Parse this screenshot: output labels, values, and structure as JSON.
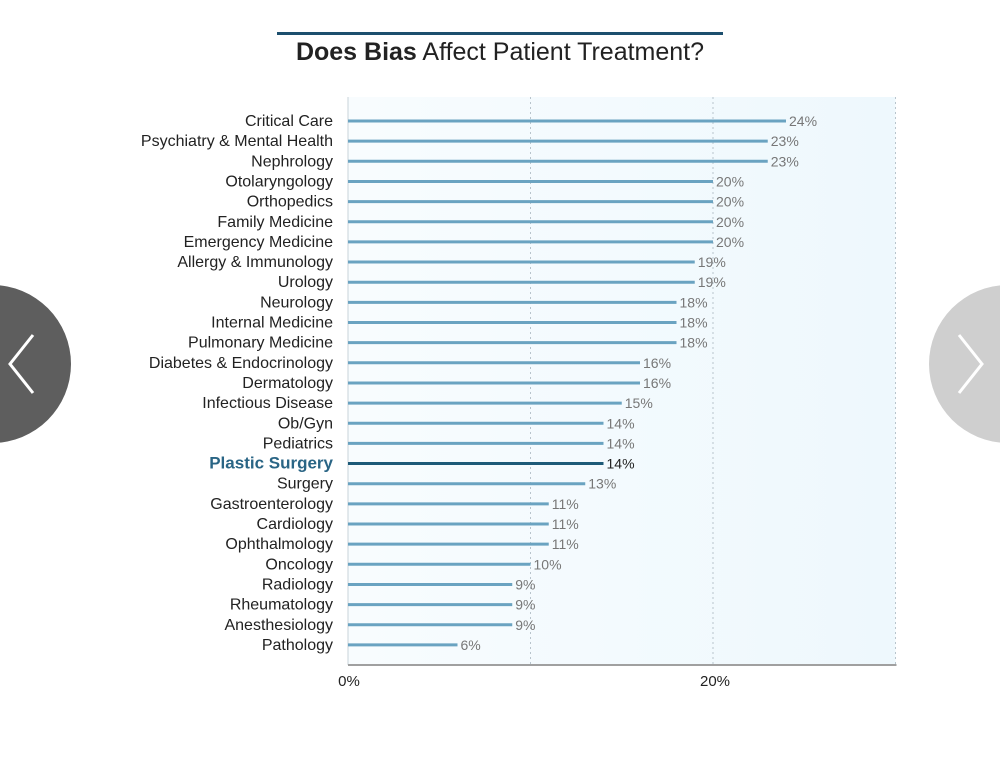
{
  "title": {
    "bold": "Does Bias",
    "rest": " Affect Patient Treatment?"
  },
  "nav": {
    "prev_icon": "chevron-left-icon",
    "next_icon": "chevron-right-icon"
  },
  "colors": {
    "bar": "#6aa3c1",
    "highlight_bar": "#1d5a78",
    "highlight_label": "#2a6585",
    "plot_bg": "#eef8fd",
    "value_label": "#777777"
  },
  "chart_data": {
    "type": "bar",
    "orientation": "horizontal",
    "title": "Does Bias Affect Patient Treatment?",
    "categories": [
      "Critical Care",
      "Psychiatry & Mental Health",
      "Nephrology",
      "Otolaryngology",
      "Orthopedics",
      "Family Medicine",
      "Emergency Medicine",
      "Allergy & Immunology",
      "Urology",
      "Neurology",
      "Internal Medicine",
      "Pulmonary Medicine",
      "Diabetes & Endocrinology",
      "Dermatology",
      "Infectious Disease",
      "Ob/Gyn",
      "Pediatrics",
      "Plastic Surgery",
      "Surgery",
      "Gastroenterology",
      "Cardiology",
      "Ophthalmology",
      "Oncology",
      "Radiology",
      "Rheumatology",
      "Anesthesiology",
      "Pathology"
    ],
    "values": [
      24,
      23,
      23,
      20,
      20,
      20,
      20,
      19,
      19,
      18,
      18,
      18,
      16,
      16,
      15,
      14,
      14,
      14,
      13,
      11,
      11,
      11,
      10,
      9,
      9,
      9,
      6
    ],
    "value_labels": [
      "24%",
      "23%",
      "23%",
      "20%",
      "20%",
      "20%",
      "20%",
      "19%",
      "19%",
      "18%",
      "18%",
      "18%",
      "16%",
      "16%",
      "15%",
      "14%",
      "14%",
      "14%",
      "13%",
      "11%",
      "11%",
      "11%",
      "10%",
      "9%",
      "9%",
      "9%",
      "6%"
    ],
    "highlight": "Plastic Surgery",
    "xlim": [
      0,
      30
    ],
    "xticks": [
      0,
      20
    ],
    "xtick_labels": [
      "0%",
      "20%"
    ],
    "grid_lines": [
      10,
      20,
      30
    ],
    "grid": true,
    "legend": "none"
  }
}
